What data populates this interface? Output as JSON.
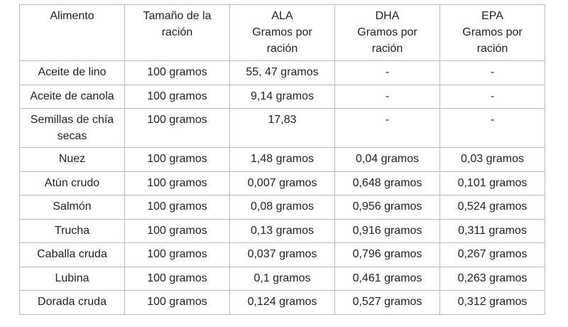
{
  "table": {
    "headers": [
      [
        "Alimento"
      ],
      [
        "Tamaño de la",
        "ración"
      ],
      [
        "ALA",
        "Gramos por",
        "ración"
      ],
      [
        "DHA",
        "Gramos por",
        "ración"
      ],
      [
        "EPA",
        "Gramos por",
        "ración"
      ]
    ],
    "rows": [
      {
        "food": [
          "Aceite de lino"
        ],
        "serving": "100 gramos",
        "ala": "55, 47 gramos",
        "dha": "-",
        "epa": "-"
      },
      {
        "food": [
          "Aceite de canola"
        ],
        "serving": "100 gramos",
        "ala": "9,14 gramos",
        "dha": "-",
        "epa": "-"
      },
      {
        "food": [
          "Semillas de chía",
          "secas"
        ],
        "serving": "100 gramos",
        "ala": "17,83",
        "dha": "-",
        "epa": "-"
      },
      {
        "food": [
          "Nuez"
        ],
        "serving": "100 gramos",
        "ala": "1,48 gramos",
        "dha": "0,04 gramos",
        "epa": "0,03 gramos"
      },
      {
        "food": [
          "Atún crudo"
        ],
        "serving": "100 gramos",
        "ala": "0,007 gramos",
        "dha": "0,648 gramos",
        "epa": "0,101 gramos"
      },
      {
        "food": [
          "Salmón"
        ],
        "serving": "100 gramos",
        "ala": "0,08 gramos",
        "dha": "0,956 gramos",
        "epa": "0,524 gramos"
      },
      {
        "food": [
          "Trucha"
        ],
        "serving": "100 gramos",
        "ala": "0,13 gramos",
        "dha": "0,916 gramos",
        "epa": "0,311 gramos"
      },
      {
        "food": [
          "Caballa cruda"
        ],
        "serving": "100 gramos",
        "ala": "0,037 gramos",
        "dha": "0,796 gramos",
        "epa": "0,267 gramos"
      },
      {
        "food": [
          "Lubina"
        ],
        "serving": "100 gramos",
        "ala": "0,1 gramos",
        "dha": "0,461 gramos",
        "epa": "0,263 gramos"
      },
      {
        "food": [
          "Dorada cruda"
        ],
        "serving": "100 gramos",
        "ala": "0,124 gramos",
        "dha": "0,527 gramos",
        "epa": "0,312 gramos"
      }
    ]
  }
}
